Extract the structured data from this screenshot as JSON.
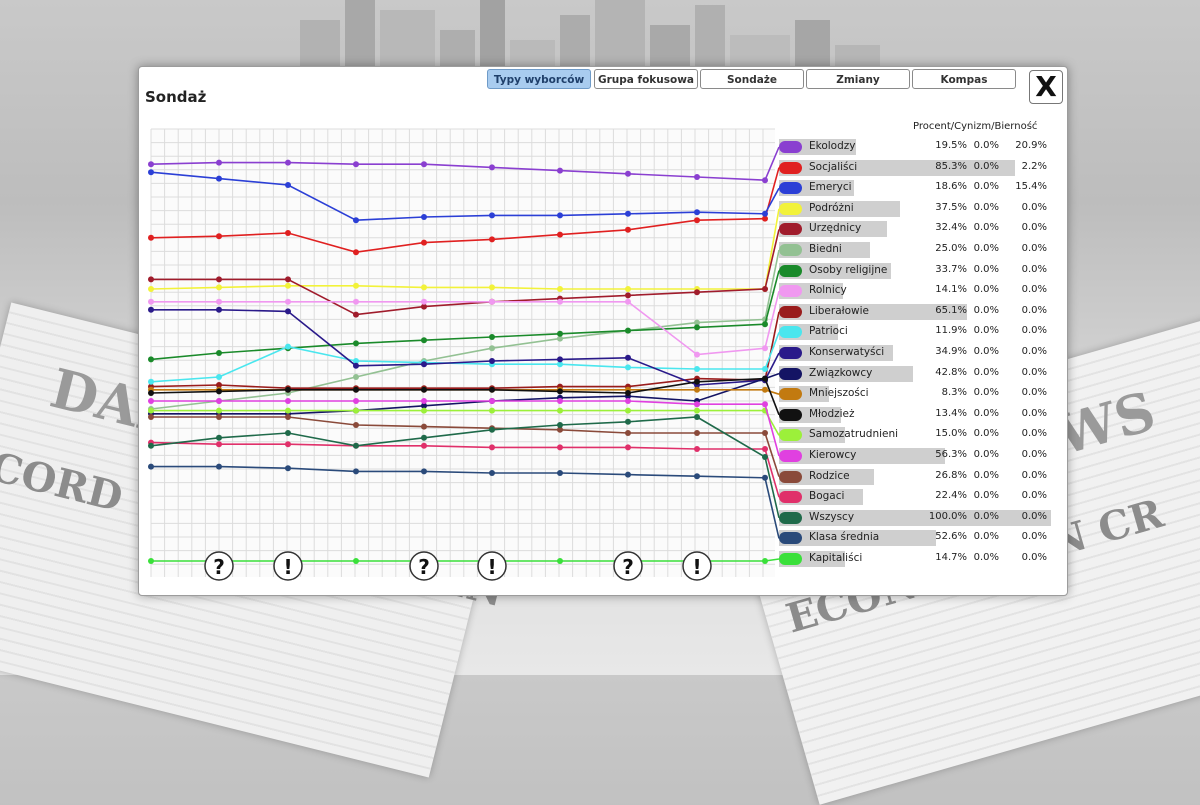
{
  "window": {
    "title": "Sondaż",
    "close_label": "X"
  },
  "tabs": [
    {
      "label": "Typy wyborców",
      "active": true
    },
    {
      "label": "Grupa fokusowa",
      "active": false
    },
    {
      "label": "Sondaże",
      "active": false
    },
    {
      "label": "Zmiany",
      "active": false
    },
    {
      "label": "Kompas",
      "active": false
    }
  ],
  "legend_header": "Procent/Cynizm/Bierność",
  "event_markers": [
    "?",
    "!",
    "?",
    "!",
    "?",
    "!"
  ],
  "background_headlines": [
    "DAI",
    "WS",
    "CORD UNEMPLOYMEN",
    "ECONOMY IN CR"
  ],
  "chart_data": {
    "type": "line",
    "x": [
      1,
      2,
      3,
      4,
      5,
      6,
      7,
      8,
      9,
      10
    ],
    "series": [
      {
        "name": "Ekolodzy",
        "color": "#8a3fd0",
        "percent": "19.5%",
        "cynicism": "0.0%",
        "passivity": "20.9%",
        "pct": 19.5,
        "values": [
          19.8,
          19.9,
          19.9,
          19.8,
          19.8,
          19.6,
          19.4,
          19.2,
          19.0,
          18.8
        ]
      },
      {
        "name": "Socjaliści",
        "color": "#e02020",
        "percent": "85.3%",
        "cynicism": "0.0%",
        "passivity": "2.2%",
        "pct": 85.3,
        "values": [
          15.2,
          15.3,
          15.5,
          14.3,
          14.9,
          15.1,
          15.4,
          15.7,
          16.3,
          16.4
        ]
      },
      {
        "name": "Emeryci",
        "color": "#2b3fd6",
        "percent": "18.6%",
        "cynicism": "0.0%",
        "passivity": "15.4%",
        "pct": 18.6,
        "values": [
          19.3,
          18.9,
          18.5,
          16.3,
          16.5,
          16.6,
          16.6,
          16.7,
          16.8,
          16.7
        ]
      },
      {
        "name": "Podróżni",
        "color": "#f2f23a",
        "percent": "37.5%",
        "cynicism": "0.0%",
        "passivity": "0.0%",
        "pct": 37.5,
        "values": [
          12.0,
          12.1,
          12.2,
          12.2,
          12.1,
          12.1,
          12.0,
          12.0,
          12.0,
          12.0
        ]
      },
      {
        "name": "Urzędnicy",
        "color": "#a01c2c",
        "percent": "32.4%",
        "cynicism": "0.0%",
        "passivity": "0.0%",
        "pct": 32.4,
        "values": [
          12.6,
          12.6,
          12.6,
          10.4,
          10.9,
          11.2,
          11.4,
          11.6,
          11.8,
          12.0
        ]
      },
      {
        "name": "Biedni",
        "color": "#93c193",
        "percent": "25.0%",
        "cynicism": "0.0%",
        "passivity": "0.0%",
        "pct": 25.0,
        "values": [
          4.5,
          5.0,
          5.5,
          6.5,
          7.5,
          8.3,
          8.9,
          9.4,
          9.9,
          10.1
        ]
      },
      {
        "name": "Osoby religijne",
        "color": "#1a8a2a",
        "percent": "33.7%",
        "cynicism": "0.0%",
        "passivity": "0.0%",
        "pct": 33.7,
        "values": [
          7.6,
          8.0,
          8.3,
          8.6,
          8.8,
          9.0,
          9.2,
          9.4,
          9.6,
          9.8
        ]
      },
      {
        "name": "Rolnicy",
        "color": "#f098f0",
        "percent": "14.1%",
        "cynicism": "0.0%",
        "passivity": "0.0%",
        "pct": 14.1,
        "values": [
          11.2,
          11.2,
          11.2,
          11.2,
          11.2,
          11.2,
          11.2,
          11.2,
          7.9,
          8.3
        ]
      },
      {
        "name": "Liberałowie",
        "color": "#9a1c1c",
        "percent": "65.1%",
        "cynicism": "0.0%",
        "passivity": "0.0%",
        "pct": 65.1,
        "values": [
          5.9,
          6.0,
          5.8,
          5.8,
          5.8,
          5.8,
          5.9,
          5.9,
          6.4,
          6.3
        ]
      },
      {
        "name": "Patrioci",
        "color": "#4ae6ee",
        "percent": "11.9%",
        "cynicism": "0.0%",
        "passivity": "0.0%",
        "pct": 11.9,
        "values": [
          6.2,
          6.5,
          8.4,
          7.5,
          7.4,
          7.3,
          7.3,
          7.1,
          7.0,
          7.0
        ]
      },
      {
        "name": "Konserwatyści",
        "color": "#2a1a8a",
        "percent": "34.9%",
        "cynicism": "0.0%",
        "passivity": "0.0%",
        "pct": 34.9,
        "values": [
          10.7,
          10.7,
          10.6,
          7.2,
          7.3,
          7.5,
          7.6,
          7.7,
          6.0,
          6.3
        ]
      },
      {
        "name": "Związkowcy",
        "color": "#141464",
        "percent": "42.8%",
        "cynicism": "0.0%",
        "passivity": "0.0%",
        "pct": 42.8,
        "values": [
          4.2,
          4.2,
          4.2,
          4.4,
          4.7,
          5.0,
          5.2,
          5.3,
          5.0,
          6.4
        ]
      },
      {
        "name": "Mniejszości",
        "color": "#c27a10",
        "percent": "8.3%",
        "cynicism": "0.0%",
        "passivity": "0.0%",
        "pct": 8.3,
        "values": [
          5.7,
          5.7,
          5.7,
          5.7,
          5.7,
          5.7,
          5.7,
          5.7,
          5.7,
          5.7
        ]
      },
      {
        "name": "Młodzież",
        "color": "#111111",
        "percent": "13.4%",
        "cynicism": "0.0%",
        "passivity": "0.0%",
        "pct": 13.4,
        "values": [
          5.5,
          5.6,
          5.7,
          5.7,
          5.7,
          5.7,
          5.6,
          5.5,
          6.2,
          6.4
        ]
      },
      {
        "name": "Samozatrudnieni",
        "color": "#9cf03a",
        "percent": "15.0%",
        "cynicism": "0.0%",
        "passivity": "0.0%",
        "pct": 15.0,
        "values": [
          4.4,
          4.4,
          4.4,
          4.4,
          4.4,
          4.4,
          4.4,
          4.4,
          4.4,
          4.4
        ]
      },
      {
        "name": "Kierowcy",
        "color": "#e040e0",
        "percent": "56.3%",
        "cynicism": "0.0%",
        "passivity": "0.0%",
        "pct": 56.3,
        "values": [
          5.0,
          5.0,
          5.0,
          5.0,
          5.0,
          5.0,
          5.0,
          5.0,
          4.8,
          4.8
        ]
      },
      {
        "name": "Rodzice",
        "color": "#8a4a3a",
        "percent": "26.8%",
        "cynicism": "0.0%",
        "passivity": "0.0%",
        "pct": 26.8,
        "values": [
          4.0,
          4.0,
          4.0,
          3.5,
          3.4,
          3.3,
          3.2,
          3.0,
          3.0,
          3.0
        ]
      },
      {
        "name": "Bogaci",
        "color": "#e0306a",
        "percent": "22.4%",
        "cynicism": "0.0%",
        "passivity": "0.0%",
        "pct": 22.4,
        "values": [
          2.4,
          2.3,
          2.3,
          2.2,
          2.2,
          2.1,
          2.1,
          2.1,
          2.0,
          2.0
        ]
      },
      {
        "name": "Wszyscy",
        "color": "#1f6a4a",
        "percent": "100.0%",
        "cynicism": "0.0%",
        "passivity": "0.0%",
        "pct": 100.0,
        "values": [
          2.2,
          2.7,
          3.0,
          2.2,
          2.7,
          3.2,
          3.5,
          3.7,
          4.0,
          1.5
        ]
      },
      {
        "name": "Klasa średnia",
        "color": "#2a4a7a",
        "percent": "52.6%",
        "cynicism": "0.0%",
        "passivity": "0.0%",
        "pct": 52.6,
        "values": [
          0.9,
          0.9,
          0.8,
          0.6,
          0.6,
          0.5,
          0.5,
          0.4,
          0.3,
          0.2
        ]
      },
      {
        "name": "Kapitaliści",
        "color": "#3ae03a",
        "percent": "14.7%",
        "cynicism": "0.0%",
        "passivity": "0.0%",
        "pct": 14.7,
        "values": [
          -5.0,
          -5.0,
          -5.0,
          -5.0,
          -5.0,
          -5.0,
          -5.0,
          -5.0,
          -5.0,
          -5.0
        ]
      }
    ]
  }
}
